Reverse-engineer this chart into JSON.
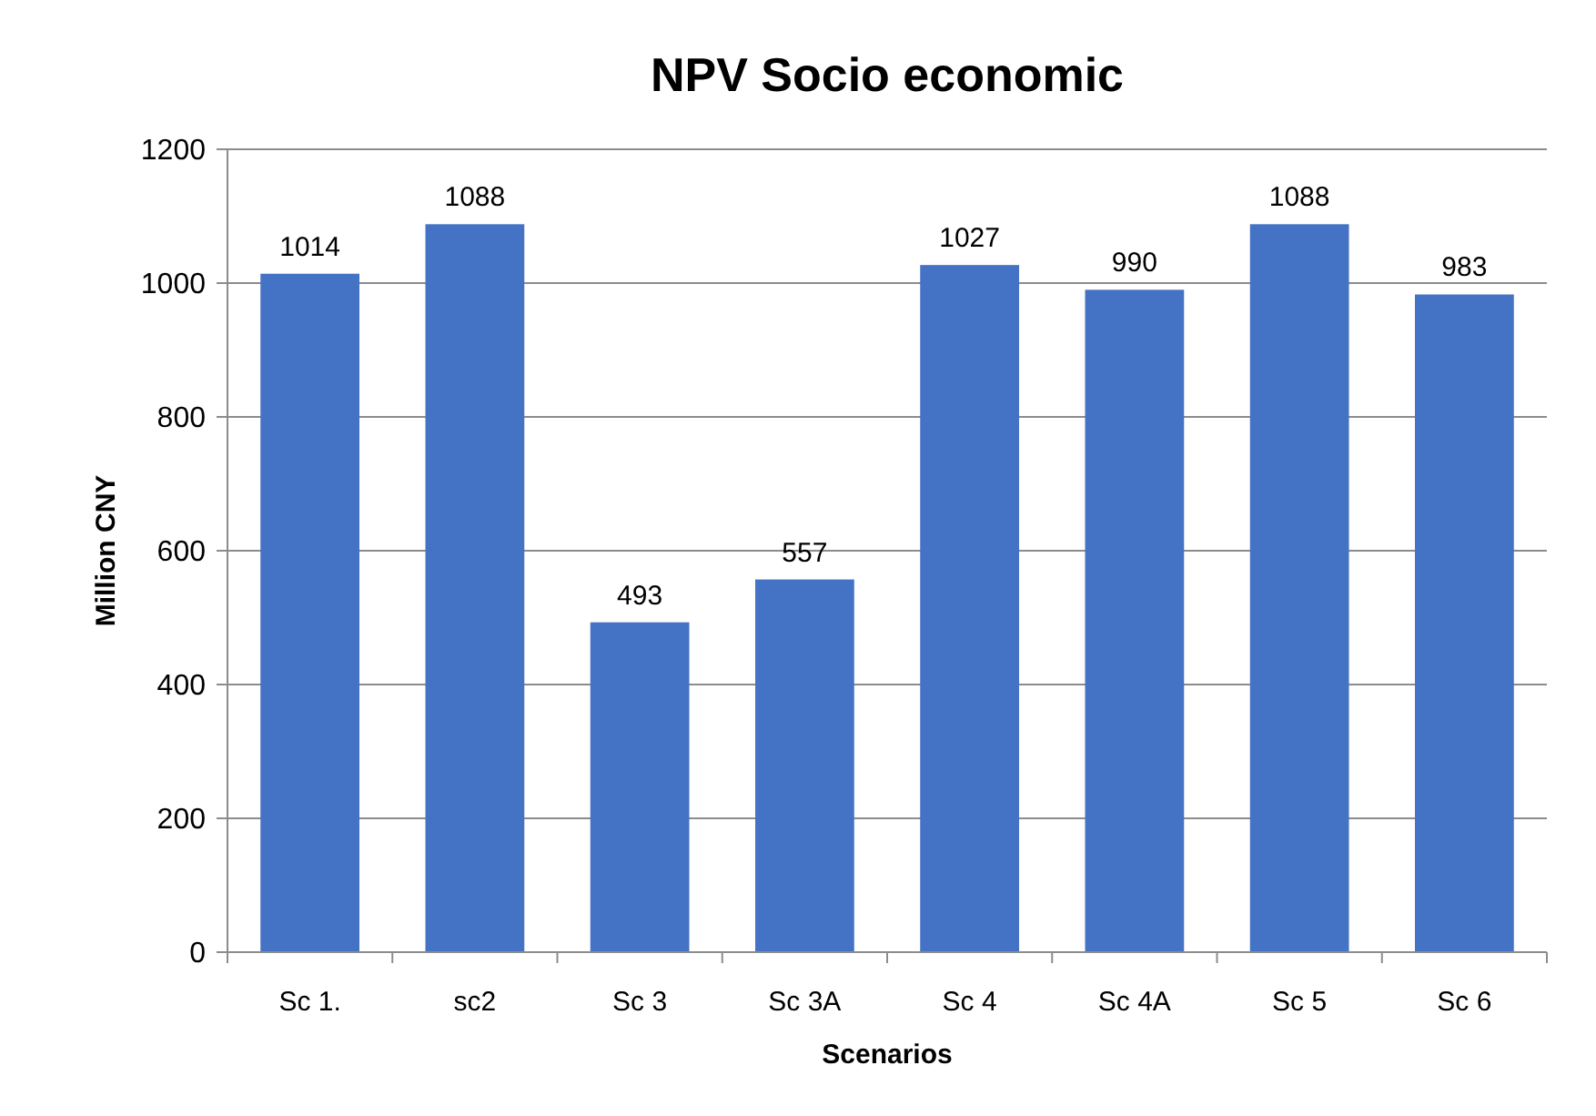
{
  "chart_data": {
    "type": "bar",
    "title": "NPV Socio economic",
    "xlabel": "Scenarios",
    "ylabel": "Million CNY",
    "categories": [
      "Sc 1.",
      "sc2",
      "Sc 3",
      "Sc 3A",
      "Sc 4",
      "Sc 4A",
      "Sc 5",
      "Sc 6"
    ],
    "values": [
      1014,
      1088,
      493,
      557,
      1027,
      990,
      1088,
      983
    ],
    "color": "#4472c4",
    "ylim": [
      0,
      1200
    ],
    "yticks": [
      0,
      200,
      400,
      600,
      800,
      1000,
      1200
    ],
    "grid": "y",
    "data_labels": true
  }
}
